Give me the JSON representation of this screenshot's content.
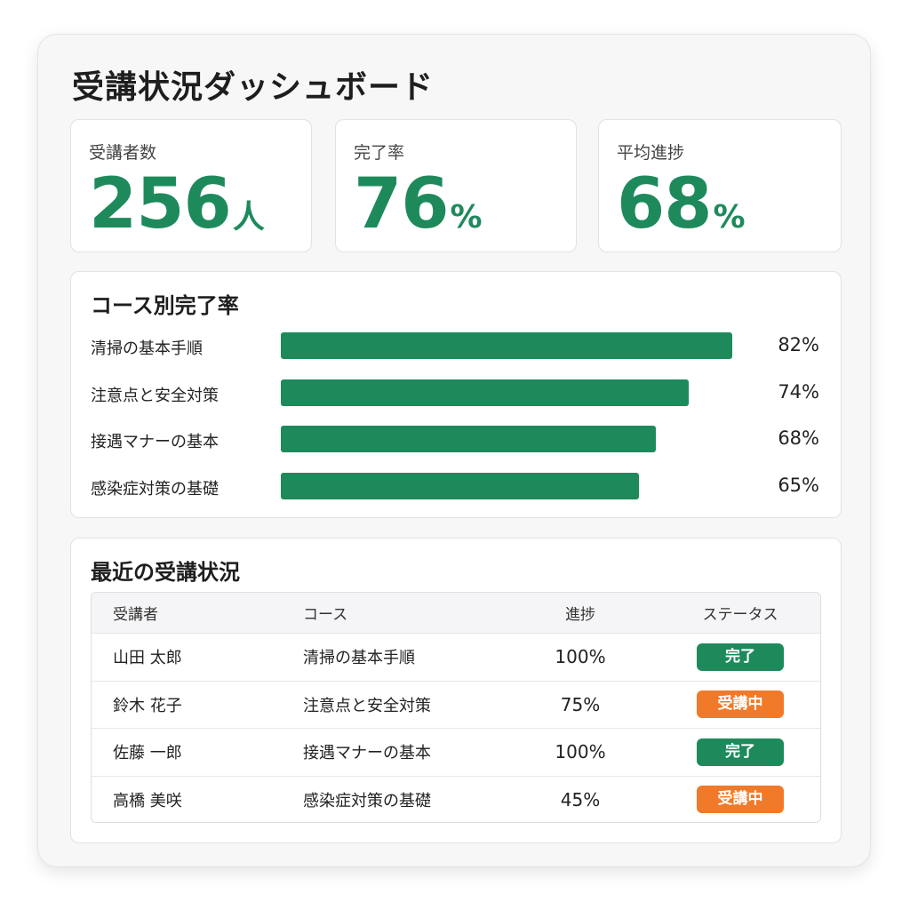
{
  "header": {
    "title": "受講状況ダッシュボード"
  },
  "colors": {
    "accent": "#1e8a5c",
    "in_progress": "#f07a2a",
    "complete": "#1e8a5c"
  },
  "kpis": [
    {
      "label": "受講者数",
      "value": "256",
      "unit": "人"
    },
    {
      "label": "完了率",
      "value": "76",
      "unit": "%"
    },
    {
      "label": "平均進捗",
      "value": "68",
      "unit": "%"
    }
  ],
  "chart_data": {
    "type": "bar",
    "orientation": "horizontal",
    "title": "コース別完了率",
    "categories": [
      "清掃の基本手順",
      "注意点と安全対策",
      "接遇マナーの基本",
      "感染症対策の基礎"
    ],
    "values": [
      82,
      74,
      68,
      65
    ],
    "value_labels": [
      "82%",
      "74%",
      "68%",
      "65%"
    ],
    "xlim": [
      0,
      100
    ]
  },
  "recent": {
    "title": "最近の受講状況",
    "columns": [
      "受講者",
      "コース",
      "進捗",
      "ステータス"
    ],
    "rows": [
      {
        "name": "山田 太郎",
        "course": "清掃の基本手順",
        "progress": "100%",
        "status": "完了",
        "status_type": "complete"
      },
      {
        "name": "鈴木 花子",
        "course": "注意点と安全対策",
        "progress": "75%",
        "status": "受講中",
        "status_type": "in_progress"
      },
      {
        "name": "佐藤 一郎",
        "course": "接遇マナーの基本",
        "progress": "100%",
        "status": "完了",
        "status_type": "complete"
      },
      {
        "name": "高橋 美咲",
        "course": "感染症対策の基礎",
        "progress": "45%",
        "status": "受講中",
        "status_type": "in_progress"
      }
    ]
  }
}
